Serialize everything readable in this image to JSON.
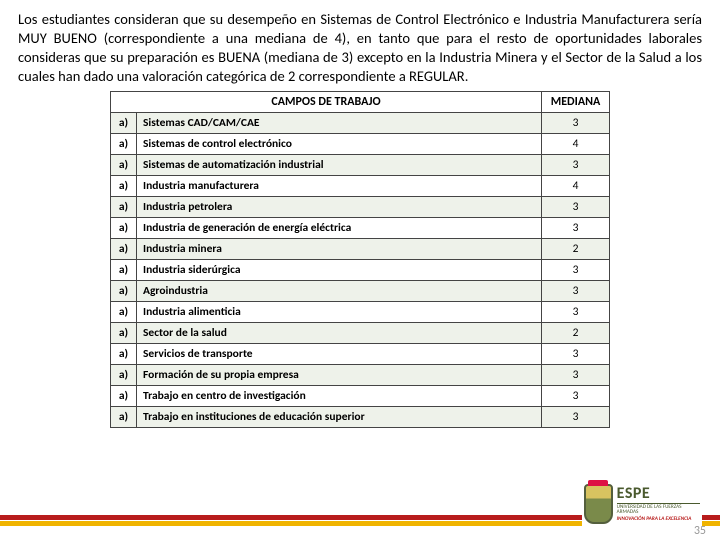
{
  "paragraph": "Los estudiantes consideran que su desempeño en Sistemas de Control Electrónico e Industria Manufacturera sería MUY BUENO (correspondiente a una mediana de 4), en tanto que para el resto de oportunidades laborales consideras que su preparación es BUENA (mediana de 3) excepto en la Industria Minera y el Sector de la Salud a los cuales han dado una valoración categórica de 2 correspondiente a REGULAR.",
  "table": {
    "headers": {
      "campos": "CAMPOS DE TRABAJO",
      "mediana": "MEDIANA"
    },
    "index_label": "a)",
    "rows": [
      {
        "campo": "Sistemas CAD/CAM/CAE",
        "mediana": "3"
      },
      {
        "campo": "Sistemas de control electrónico",
        "mediana": "4"
      },
      {
        "campo": "Sistemas de automatización industrial",
        "mediana": "3"
      },
      {
        "campo": "Industria manufacturera",
        "mediana": "4"
      },
      {
        "campo": "Industria petrolera",
        "mediana": "3"
      },
      {
        "campo": "Industria de generación de energía eléctrica",
        "mediana": "3"
      },
      {
        "campo": "Industria minera",
        "mediana": "2"
      },
      {
        "campo": "Industria siderúrgica",
        "mediana": "3"
      },
      {
        "campo": "Agroindustria",
        "mediana": "3"
      },
      {
        "campo": "Industria alimenticia",
        "mediana": "3"
      },
      {
        "campo": "Sector de la salud",
        "mediana": "2"
      },
      {
        "campo": "Servicios de transporte",
        "mediana": "3"
      },
      {
        "campo": "Formación de su propia empresa",
        "mediana": "3"
      },
      {
        "campo": "Trabajo en centro de investigación",
        "mediana": "3"
      },
      {
        "campo": "Trabajo en instituciones de educación superior",
        "mediana": "3"
      }
    ]
  },
  "footer": {
    "page_number": "35",
    "logo_main": "ESPE",
    "logo_sub": "UNIVERSIDAD DE LAS FUERZAS ARMADAS",
    "logo_tag": "INNOVACIÓN PARA LA EXCELENCIA"
  },
  "colors": {
    "stripe_red": "#b81c1c",
    "stripe_yellow": "#f0b400",
    "row_alt": "#eef2ea",
    "logo_green": "#4a5a2e"
  }
}
